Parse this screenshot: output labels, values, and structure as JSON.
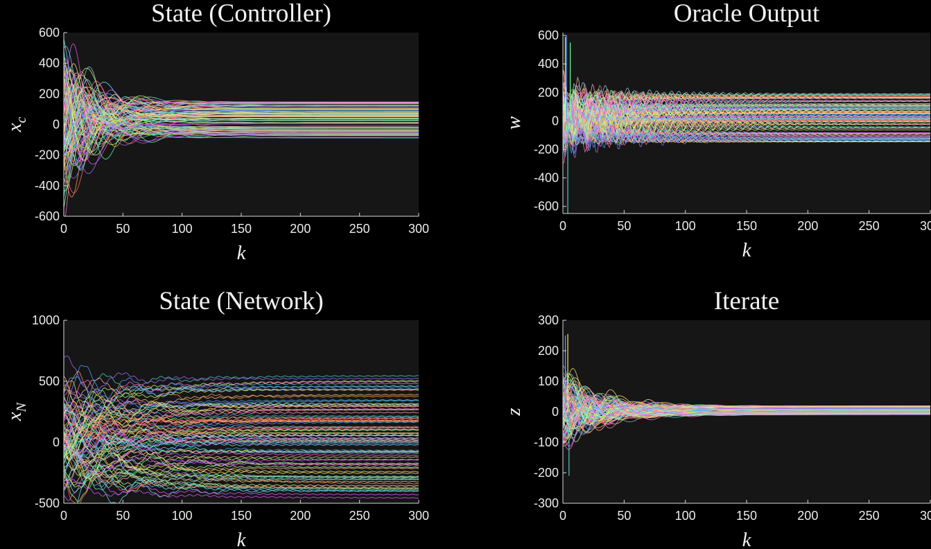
{
  "palette": [
    "#ff6b6b",
    "#4ecdc4",
    "#ffe66d",
    "#a06cff",
    "#6bff8f",
    "#ff9f43",
    "#54a0ff",
    "#ff6bd6",
    "#c8ff6b",
    "#6be7ff",
    "#ffa8a8",
    "#b8ff9f",
    "#f8c291",
    "#82ccdd",
    "#e056fd"
  ],
  "chart_data": [
    {
      "type": "line",
      "title": "State (Controller)",
      "ylabel": "x",
      "ylabel_sub": "c",
      "xlabel": "k",
      "xlim": [
        0,
        300
      ],
      "ylim": [
        -600,
        600
      ],
      "xticks": [
        0,
        50,
        100,
        150,
        200,
        250,
        300
      ],
      "yticks": [
        -600,
        -400,
        -200,
        0,
        200,
        400,
        600
      ],
      "series_count": 90,
      "steady_range": [
        -90,
        150
      ],
      "initial_amplitude": 500,
      "decay": 25,
      "osc_period": 40
    },
    {
      "type": "line",
      "title": "Oracle Output",
      "ylabel": "w",
      "ylabel_sub": "",
      "xlabel": "k",
      "xlim": [
        0,
        300
      ],
      "ylim": [
        -650,
        620
      ],
      "xticks": [
        0,
        50,
        100,
        150,
        200,
        250,
        300
      ],
      "yticks": [
        -600,
        -400,
        -200,
        0,
        200,
        400,
        600
      ],
      "series_count": 90,
      "steady_range": [
        -150,
        195
      ],
      "initial_amplitude": 130,
      "decay": 30,
      "osc_period": 16
    },
    {
      "type": "line",
      "title": "State (Network)",
      "ylabel": "x",
      "ylabel_sub": "N",
      "xlabel": "k",
      "xlim": [
        0,
        300
      ],
      "ylim": [
        -500,
        1000
      ],
      "xticks": [
        0,
        50,
        100,
        150,
        200,
        250,
        300
      ],
      "yticks": [
        -500,
        0,
        500,
        1000
      ],
      "series_count": 90,
      "steady_range": [
        -460,
        550
      ],
      "initial_amplitude": 280,
      "decay": 40,
      "osc_period": 45
    },
    {
      "type": "line",
      "title": "Iterate",
      "ylabel": "z",
      "ylabel_sub": "",
      "xlabel": "k",
      "xlim": [
        0,
        300
      ],
      "ylim": [
        -300,
        300
      ],
      "xticks": [
        0,
        50,
        100,
        150,
        200,
        250,
        300
      ],
      "yticks": [
        -300,
        -200,
        -100,
        0,
        100,
        200,
        300
      ],
      "series_count": 90,
      "steady_range": [
        -10,
        20
      ],
      "initial_amplitude": 120,
      "decay": 30,
      "osc_period": 35
    }
  ]
}
